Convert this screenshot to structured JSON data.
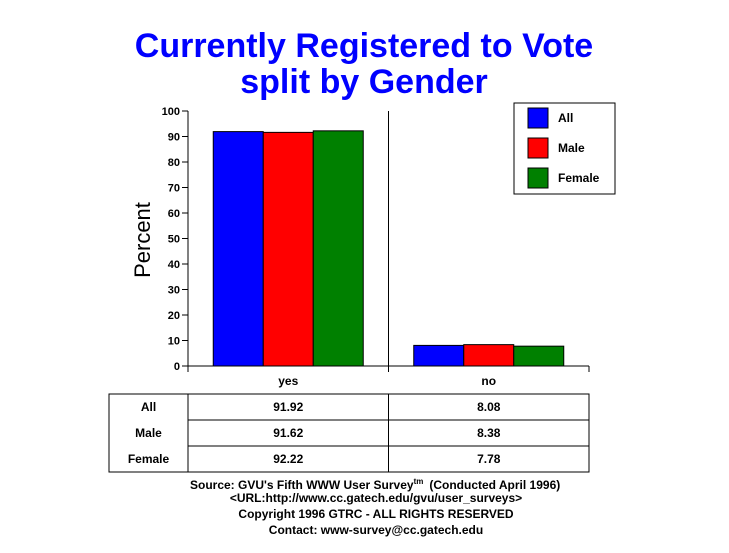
{
  "chart_data": {
    "type": "bar",
    "title_lines": [
      "Currently Registered to Vote",
      "split by Gender"
    ],
    "ylabel": "Percent",
    "xlabel": "",
    "ylim": [
      0,
      100
    ],
    "yticks": [
      0,
      10,
      20,
      30,
      40,
      50,
      60,
      70,
      80,
      90,
      100
    ],
    "categories": [
      "yes",
      "no"
    ],
    "series": [
      {
        "name": "All",
        "color": "#0000ff",
        "values": [
          91.92,
          8.08
        ],
        "labels": [
          "91.92",
          "8.08"
        ]
      },
      {
        "name": "Male",
        "color": "#ff0000",
        "values": [
          91.62,
          8.38
        ],
        "labels": [
          "91.62",
          "8.38"
        ]
      },
      {
        "name": "Female",
        "color": "#008000",
        "values": [
          92.22,
          7.78
        ],
        "labels": [
          "92.22",
          "7.78"
        ]
      }
    ],
    "legend_position": "top-right",
    "grid": "vertical-separator"
  },
  "source": {
    "line1_prefix": "Source: GVU's Fifth WWW User Survey",
    "line1_sup": "tm",
    "line1_suffix": "(Conducted April 1996)",
    "line2": "<URL:http://www.cc.gatech.edu/gvu/user_surveys>",
    "line3": "Copyright 1996 GTRC -  ALL RIGHTS RESERVED",
    "line4": "Contact: www-survey@cc.gatech.edu"
  }
}
